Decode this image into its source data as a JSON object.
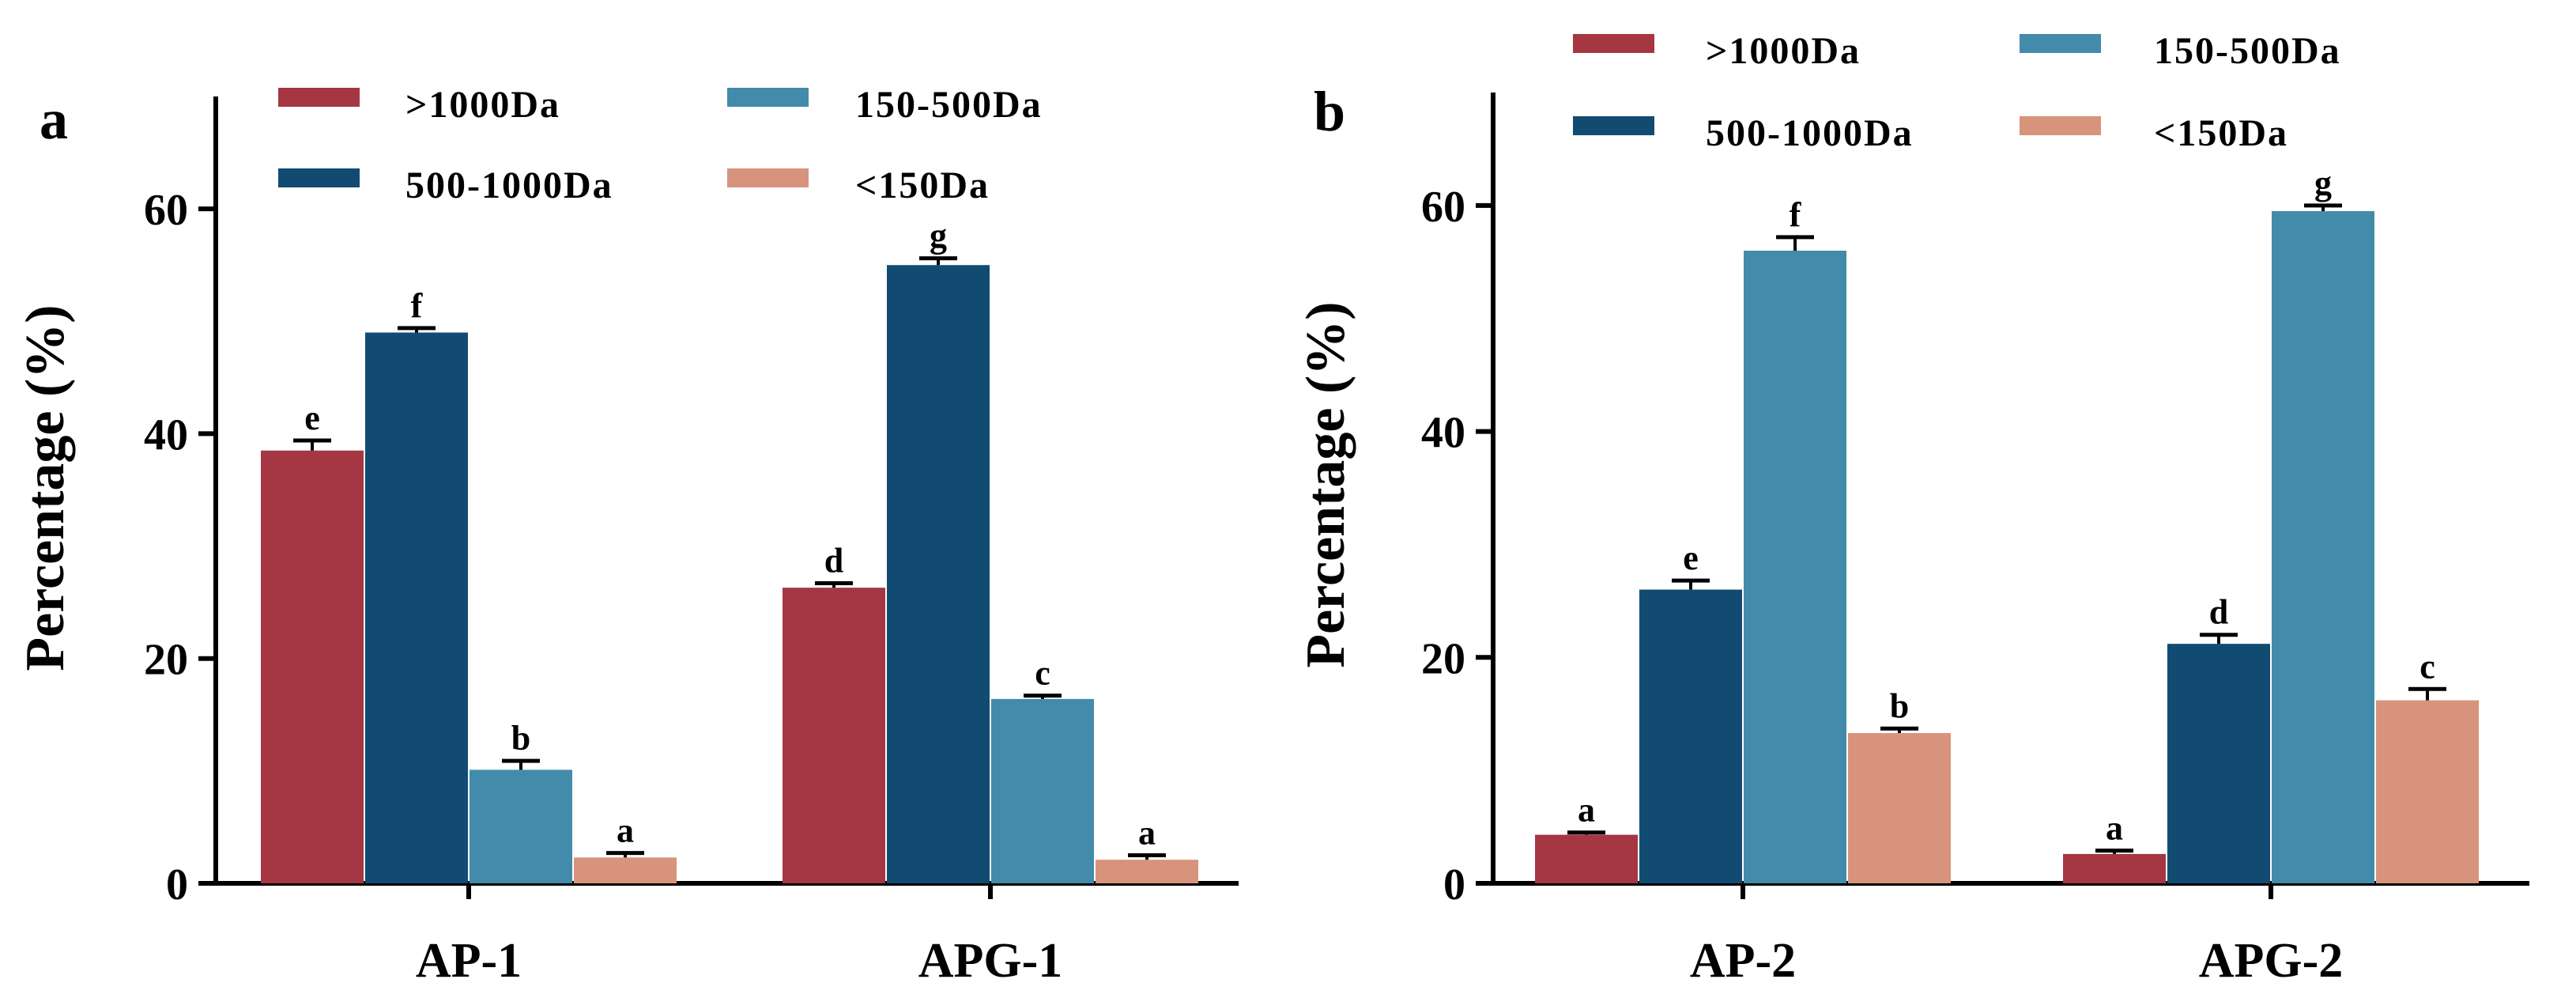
{
  "colors": {
    "gt1000": "#A43742",
    "r500_1000": "#124B72",
    "r150_500": "#438BAA",
    "lt150": "#D8937C",
    "axis": "#000000"
  },
  "chart_data": [
    {
      "type": "bar",
      "panel_label": "a",
      "ylabel": "Percentage (%)",
      "ylim": [
        0,
        70
      ],
      "yticks": [
        "0",
        "20",
        "40",
        "60"
      ],
      "categories": [
        "AP-1",
        "APG-1"
      ],
      "legend_position": "top",
      "series": [
        {
          "name": ">1000Da",
          "color_key": "gt1000",
          "values": [
            38.5,
            26.3
          ],
          "errors": [
            0.9,
            0.4
          ],
          "letters": [
            "e",
            "d"
          ]
        },
        {
          "name": "500-1000Da",
          "color_key": "r500_1000",
          "values": [
            49.0,
            55.0
          ],
          "errors": [
            0.4,
            0.6
          ],
          "letters": [
            "f",
            "g"
          ]
        },
        {
          "name": "150-500Da",
          "color_key": "r150_500",
          "values": [
            10.1,
            16.4
          ],
          "errors": [
            0.8,
            0.3
          ],
          "letters": [
            "b",
            "c"
          ]
        },
        {
          "name": "<150Da",
          "color_key": "lt150",
          "values": [
            2.3,
            2.1
          ],
          "errors": [
            0.4,
            0.4
          ],
          "letters": [
            "a",
            "a"
          ]
        }
      ]
    },
    {
      "type": "bar",
      "panel_label": "b",
      "ylabel": "Percentage (%)",
      "ylim": [
        0,
        70
      ],
      "yticks": [
        "0",
        "20",
        "40",
        "60"
      ],
      "categories": [
        "AP-2",
        "APG-2"
      ],
      "legend_position": "top",
      "series": [
        {
          "name": ">1000Da",
          "color_key": "gt1000",
          "values": [
            4.3,
            2.6
          ],
          "errors": [
            0.2,
            0.3
          ],
          "letters": [
            "a",
            "a"
          ]
        },
        {
          "name": "500-1000Da",
          "color_key": "r500_1000",
          "values": [
            26.0,
            21.2
          ],
          "errors": [
            0.8,
            0.8
          ],
          "letters": [
            "e",
            "d"
          ]
        },
        {
          "name": "150-500Da",
          "color_key": "r150_500",
          "values": [
            56.0,
            59.5
          ],
          "errors": [
            1.2,
            0.5
          ],
          "letters": [
            "f",
            "g"
          ]
        },
        {
          "name": "<150Da",
          "color_key": "lt150",
          "values": [
            13.3,
            16.2
          ],
          "errors": [
            0.4,
            1.0
          ],
          "letters": [
            "b",
            "c"
          ]
        }
      ]
    }
  ]
}
